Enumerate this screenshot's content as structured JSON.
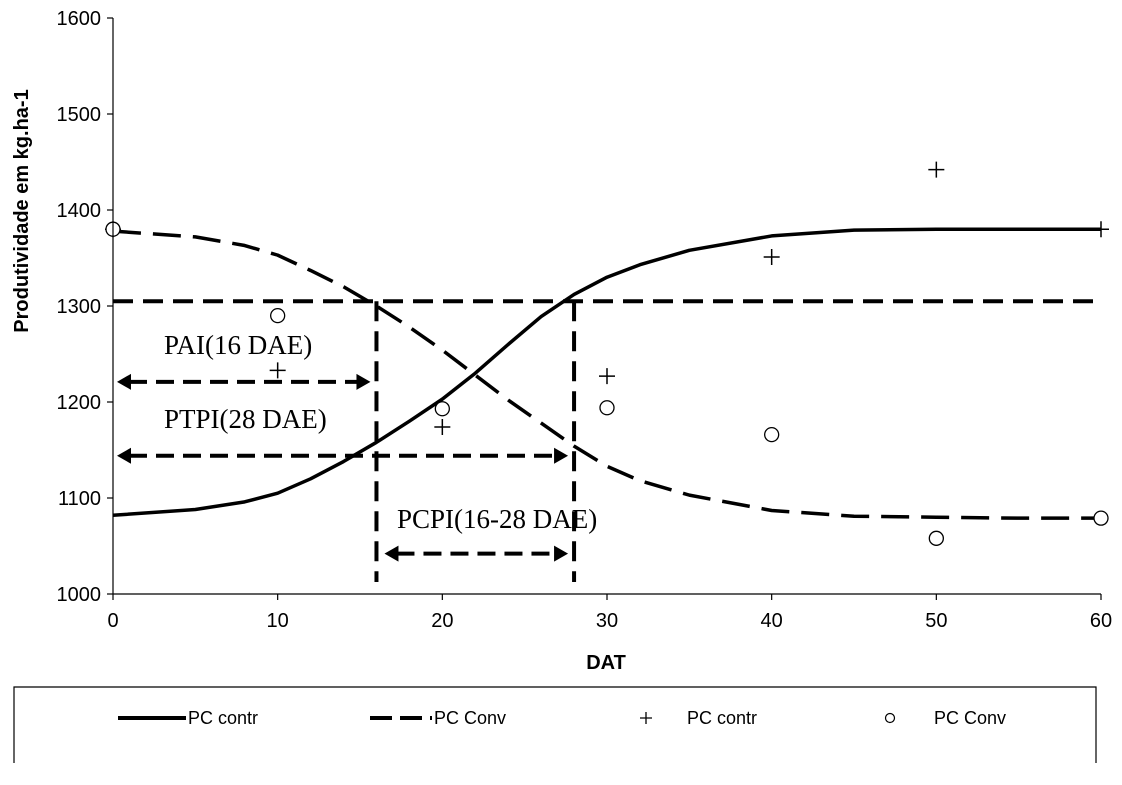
{
  "chart_data": {
    "type": "scatter",
    "xlabel": "DAT",
    "ylabel": "Produtividade  em kg.ha-1",
    "xlim": [
      0,
      60
    ],
    "ylim": [
      1000,
      1600
    ],
    "x_ticks": [
      0,
      10,
      20,
      30,
      40,
      50,
      60
    ],
    "y_ticks": [
      1000,
      1100,
      1200,
      1300,
      1400,
      1500,
      1600
    ],
    "grid": false,
    "legend_position": "bottom",
    "series": [
      {
        "name": "PC contr",
        "kind": "line",
        "style": "solid",
        "color": "#000000",
        "x": [
          0,
          5,
          8,
          10,
          12,
          14,
          16,
          18,
          20,
          22,
          24,
          26,
          28,
          30,
          32,
          35,
          40,
          45,
          50,
          55,
          60
        ],
        "values": [
          1082,
          1088,
          1096,
          1105,
          1120,
          1138,
          1158,
          1180,
          1203,
          1230,
          1260,
          1289,
          1312,
          1330,
          1343,
          1358,
          1373,
          1379,
          1380,
          1380,
          1380
        ]
      },
      {
        "name": "PC Conv",
        "kind": "line",
        "style": "dashed",
        "color": "#000000",
        "x": [
          0,
          5,
          8,
          10,
          12,
          14,
          16,
          18,
          20,
          22,
          24,
          26,
          28,
          30,
          32,
          35,
          40,
          45,
          50,
          55,
          60
        ],
        "values": [
          1378,
          1372,
          1363,
          1353,
          1337,
          1320,
          1300,
          1278,
          1254,
          1228,
          1202,
          1178,
          1154,
          1133,
          1118,
          1103,
          1087,
          1081,
          1080,
          1079,
          1079
        ]
      },
      {
        "name": "PC contr",
        "kind": "markers",
        "marker": "plus",
        "color": "#000000",
        "x": [
          0,
          10,
          20,
          30,
          40,
          50,
          60
        ],
        "values": [
          1380,
          1233,
          1174,
          1227,
          1351,
          1442,
          1380
        ]
      },
      {
        "name": "PC Conv",
        "kind": "markers",
        "marker": "circle",
        "color": "#000000",
        "x": [
          0,
          10,
          20,
          30,
          40,
          50,
          60
        ],
        "values": [
          1380,
          1290,
          1193,
          1194,
          1166,
          1058,
          1079
        ]
      }
    ],
    "reference_lines": {
      "horizontal_y": 1305,
      "vertical_x": [
        16,
        28
      ]
    },
    "annotations": [
      {
        "text": "PAI(16 DAE)",
        "arrow_x": [
          0,
          16
        ],
        "arrow_y": 1221,
        "arrow_heads": "both"
      },
      {
        "text": "PTPI(28 DAE)",
        "arrow_x": [
          0,
          28
        ],
        "arrow_y": 1144,
        "arrow_heads": "both"
      },
      {
        "text": "PCPI(16-28 DAE)",
        "arrow_x": [
          16,
          28
        ],
        "arrow_y": 1042,
        "arrow_heads": "both"
      }
    ]
  }
}
